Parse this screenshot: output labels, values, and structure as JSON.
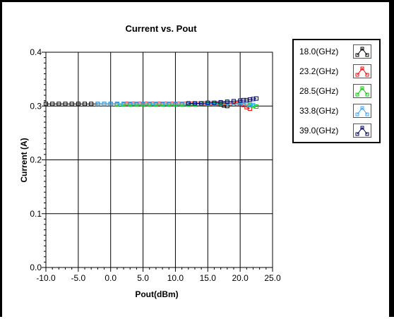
{
  "chart_data": {
    "type": "line",
    "title": "Current vs. Pout",
    "xlabel": "Pout(dBm)",
    "ylabel": "Current (A)",
    "xlim": [
      -10.0,
      25.0
    ],
    "ylim": [
      0.0,
      0.4
    ],
    "xticks": [
      "-10.0",
      "-5.0",
      "0.0",
      "5.0",
      "10.0",
      "15.0",
      "20.0",
      "25.0"
    ],
    "yticks": [
      "0.0",
      "0.1",
      "0.2",
      "0.3",
      "0.4"
    ],
    "grid": true,
    "legend_placement": "right",
    "series": [
      {
        "name": "18.0(GHz)",
        "color": "#000000",
        "x": [
          -10,
          -9,
          -8,
          -7,
          -6,
          -5,
          -4,
          -3,
          -2,
          -1,
          0,
          1,
          2,
          3,
          4,
          5,
          6,
          7,
          8,
          9,
          10,
          11,
          12,
          13,
          14,
          15,
          16,
          17,
          17.5,
          18
        ],
        "y": [
          0.304,
          0.304,
          0.304,
          0.304,
          0.304,
          0.304,
          0.304,
          0.304,
          0.304,
          0.304,
          0.304,
          0.304,
          0.304,
          0.304,
          0.304,
          0.304,
          0.304,
          0.304,
          0.304,
          0.304,
          0.304,
          0.304,
          0.304,
          0.304,
          0.304,
          0.305,
          0.305,
          0.303,
          0.301,
          0.3
        ]
      },
      {
        "name": "23.2(GHz)",
        "color": "#ff0000",
        "x": [
          2.5,
          3.5,
          4.5,
          5.5,
          6.5,
          7.5,
          8.5,
          9.5,
          10.5,
          11.5,
          12.5,
          13.5,
          14.5,
          15.5,
          16.5,
          17.5,
          18.5,
          19.5,
          20.5,
          21,
          21.5
        ],
        "y": [
          0.304,
          0.304,
          0.304,
          0.304,
          0.304,
          0.304,
          0.304,
          0.304,
          0.304,
          0.304,
          0.304,
          0.304,
          0.305,
          0.305,
          0.305,
          0.305,
          0.305,
          0.304,
          0.302,
          0.298,
          0.295
        ]
      },
      {
        "name": "28.5(GHz)",
        "color": "#00cc00",
        "x": [
          1,
          2,
          3,
          4,
          5,
          6,
          7,
          8,
          9,
          10,
          11,
          12,
          13,
          14,
          15,
          16,
          17,
          18,
          19,
          20,
          21,
          21.5,
          22,
          22.5
        ],
        "y": [
          0.303,
          0.303,
          0.303,
          0.303,
          0.303,
          0.303,
          0.303,
          0.303,
          0.303,
          0.303,
          0.303,
          0.303,
          0.303,
          0.304,
          0.304,
          0.304,
          0.305,
          0.306,
          0.306,
          0.305,
          0.304,
          0.302,
          0.3,
          0.299
        ]
      },
      {
        "name": "33.8(GHz)",
        "color": "#33aaff",
        "x": [
          -2,
          -1,
          0,
          1,
          2,
          3,
          4,
          5,
          6,
          7,
          8,
          9,
          10,
          11,
          12,
          13,
          14,
          15,
          16,
          17,
          18,
          19,
          20,
          21,
          21.5,
          22
        ],
        "y": [
          0.304,
          0.304,
          0.304,
          0.304,
          0.304,
          0.304,
          0.304,
          0.304,
          0.304,
          0.304,
          0.304,
          0.304,
          0.304,
          0.304,
          0.304,
          0.304,
          0.305,
          0.305,
          0.305,
          0.306,
          0.306,
          0.306,
          0.305,
          0.304,
          0.303,
          0.302
        ]
      },
      {
        "name": "39.0(GHz)",
        "color": "#000066",
        "x": [
          12,
          13,
          14,
          15,
          16,
          17,
          18,
          19,
          20,
          20.5,
          21,
          21.5,
          22,
          22.5
        ],
        "y": [
          0.305,
          0.305,
          0.305,
          0.306,
          0.306,
          0.307,
          0.308,
          0.309,
          0.31,
          0.311,
          0.311,
          0.312,
          0.313,
          0.314
        ]
      }
    ]
  }
}
